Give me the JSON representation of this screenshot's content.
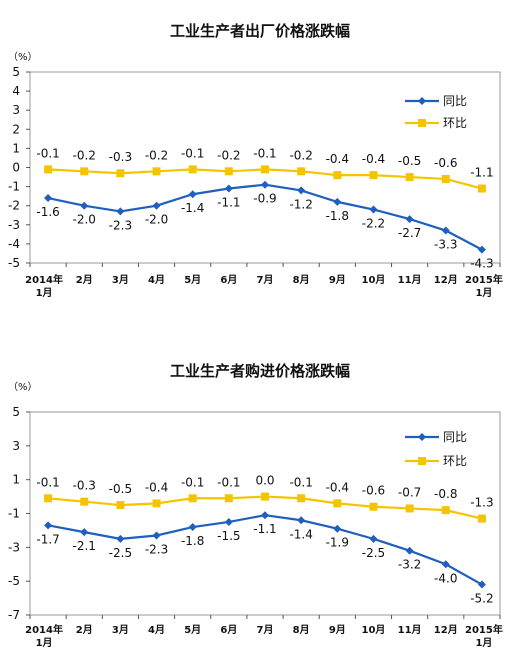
{
  "chart_data": [
    {
      "type": "line",
      "title": "工业生产者出厂价格涨跌幅",
      "unit_label": "（%）",
      "categories": [
        [
          "2014年",
          "1月"
        ],
        [
          "2月"
        ],
        [
          "3月"
        ],
        [
          "4月"
        ],
        [
          "5月"
        ],
        [
          "6月"
        ],
        [
          "7月"
        ],
        [
          "8月"
        ],
        [
          "9月"
        ],
        [
          "10月"
        ],
        [
          "11月"
        ],
        [
          "12月"
        ],
        [
          "2015年",
          "1月"
        ]
      ],
      "ylim": [
        -5,
        5
      ],
      "yticks": [
        -5,
        -4,
        -3,
        -2,
        -1,
        0,
        1,
        2,
        3,
        4,
        5
      ],
      "grid": false,
      "legend": "top-right",
      "series": [
        {
          "name": "同比",
          "color": "#1f5fbf",
          "marker": "diamond",
          "values": [
            -1.6,
            -2.0,
            -2.3,
            -2.0,
            -1.4,
            -1.1,
            -0.9,
            -1.2,
            -1.8,
            -2.2,
            -2.7,
            -3.3,
            -4.3
          ]
        },
        {
          "name": "环比",
          "color": "#f5c400",
          "marker": "square",
          "values": [
            -0.1,
            -0.2,
            -0.3,
            -0.2,
            -0.1,
            -0.2,
            -0.1,
            -0.2,
            -0.4,
            -0.4,
            -0.5,
            -0.6,
            -1.1
          ]
        }
      ]
    },
    {
      "type": "line",
      "title": "工业生产者购进价格涨跌幅",
      "unit_label": "（%）",
      "categories": [
        [
          "2014年",
          "1月"
        ],
        [
          "2月"
        ],
        [
          "3月"
        ],
        [
          "4月"
        ],
        [
          "5月"
        ],
        [
          "6月"
        ],
        [
          "7月"
        ],
        [
          "8月"
        ],
        [
          "9月"
        ],
        [
          "10月"
        ],
        [
          "11月"
        ],
        [
          "12月"
        ],
        [
          "2015年",
          "1月"
        ]
      ],
      "ylim": [
        -7,
        5
      ],
      "yticks": [
        -7,
        -5,
        -3,
        -1,
        1,
        3,
        5
      ],
      "grid": false,
      "legend": "top-right",
      "series": [
        {
          "name": "同比",
          "color": "#1f5fbf",
          "marker": "diamond",
          "values": [
            -1.7,
            -2.1,
            -2.5,
            -2.3,
            -1.8,
            -1.5,
            -1.1,
            -1.4,
            -1.9,
            -2.5,
            -3.2,
            -4.0,
            -5.2
          ]
        },
        {
          "name": "环比",
          "color": "#f5c400",
          "marker": "square",
          "values": [
            -0.1,
            -0.3,
            -0.5,
            -0.4,
            -0.1,
            -0.1,
            0.0,
            -0.1,
            -0.4,
            -0.6,
            -0.7,
            -0.8,
            -1.3
          ]
        }
      ]
    }
  ]
}
